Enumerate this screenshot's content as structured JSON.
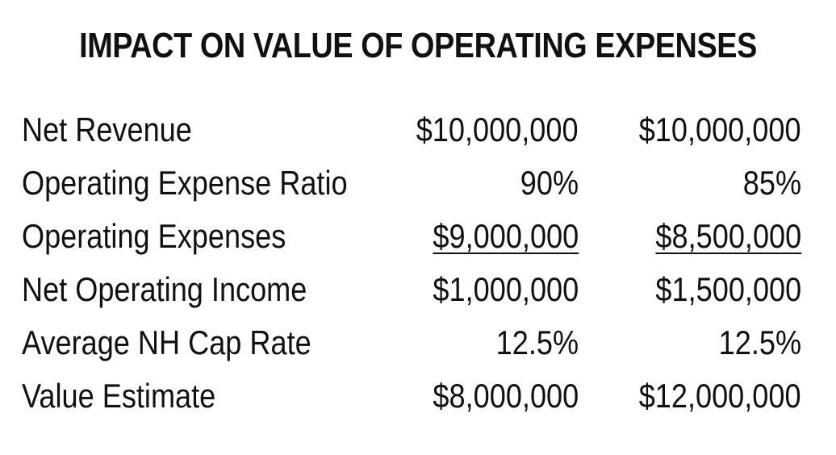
{
  "title": "IMPACT ON VALUE OF OPERATING EXPENSES",
  "rows": [
    {
      "label": "Net Revenue",
      "col1": "$10,000,000",
      "col2": "$10,000,000"
    },
    {
      "label": "Operating Expense Ratio",
      "col1": "90%",
      "col2": "85%"
    },
    {
      "label": "Operating Expenses",
      "col1": "$9,000,000",
      "col2": "$8,500,000"
    },
    {
      "label": "Net Operating Income",
      "col1": "$1,000,000",
      "col2": "$1,500,000"
    },
    {
      "label": "Average NH Cap Rate",
      "col1": "12.5%",
      "col2": "12.5%"
    },
    {
      "label": "Value Estimate",
      "col1": "$8,000,000",
      "col2": "$12,000,000"
    }
  ]
}
